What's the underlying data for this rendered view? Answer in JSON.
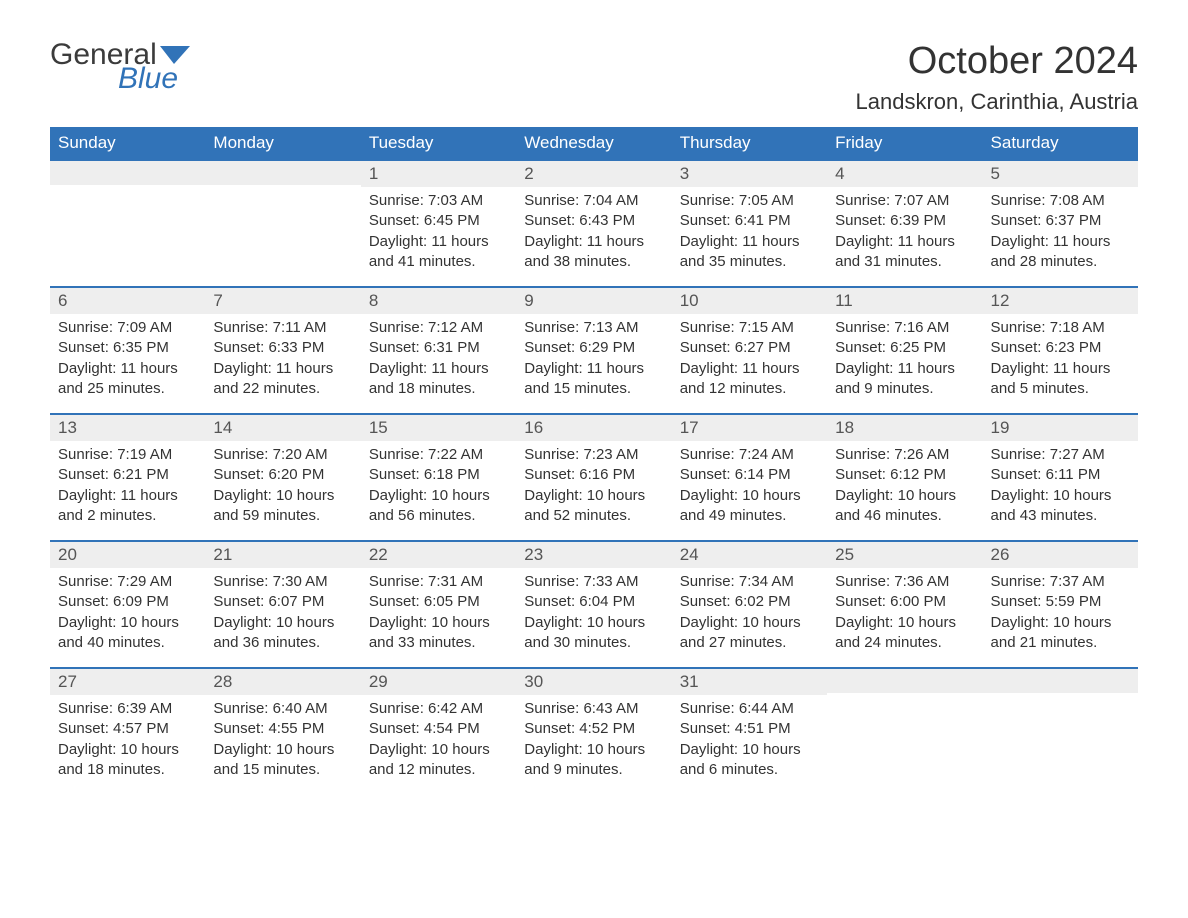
{
  "brand": {
    "word1": "General",
    "word2": "Blue",
    "word1_color": "#3b3b3b",
    "word2_color": "#3173b8",
    "flag_color": "#3173b8"
  },
  "title": "October 2024",
  "location": "Landskron, Carinthia, Austria",
  "colors": {
    "header_bg": "#3173b8",
    "header_text": "#ffffff",
    "daynum_bg": "#eeeeee",
    "daynum_text": "#555555",
    "week_border": "#3173b8",
    "body_text": "#333333",
    "background": "#ffffff"
  },
  "fonts": {
    "title_size_pt": 29,
    "location_size_pt": 17,
    "weekday_size_pt": 13,
    "daynum_size_pt": 13,
    "body_size_pt": 11
  },
  "weekdays": [
    "Sunday",
    "Monday",
    "Tuesday",
    "Wednesday",
    "Thursday",
    "Friday",
    "Saturday"
  ],
  "labels": {
    "sunrise": "Sunrise:",
    "sunset": "Sunset:",
    "daylight": "Daylight:"
  },
  "weeks": [
    [
      {
        "n": "",
        "empty": true
      },
      {
        "n": "",
        "empty": true
      },
      {
        "n": "1",
        "sunrise": "7:03 AM",
        "sunset": "6:45 PM",
        "daylight": "11 hours and 41 minutes."
      },
      {
        "n": "2",
        "sunrise": "7:04 AM",
        "sunset": "6:43 PM",
        "daylight": "11 hours and 38 minutes."
      },
      {
        "n": "3",
        "sunrise": "7:05 AM",
        "sunset": "6:41 PM",
        "daylight": "11 hours and 35 minutes."
      },
      {
        "n": "4",
        "sunrise": "7:07 AM",
        "sunset": "6:39 PM",
        "daylight": "11 hours and 31 minutes."
      },
      {
        "n": "5",
        "sunrise": "7:08 AM",
        "sunset": "6:37 PM",
        "daylight": "11 hours and 28 minutes."
      }
    ],
    [
      {
        "n": "6",
        "sunrise": "7:09 AM",
        "sunset": "6:35 PM",
        "daylight": "11 hours and 25 minutes."
      },
      {
        "n": "7",
        "sunrise": "7:11 AM",
        "sunset": "6:33 PM",
        "daylight": "11 hours and 22 minutes."
      },
      {
        "n": "8",
        "sunrise": "7:12 AM",
        "sunset": "6:31 PM",
        "daylight": "11 hours and 18 minutes."
      },
      {
        "n": "9",
        "sunrise": "7:13 AM",
        "sunset": "6:29 PM",
        "daylight": "11 hours and 15 minutes."
      },
      {
        "n": "10",
        "sunrise": "7:15 AM",
        "sunset": "6:27 PM",
        "daylight": "11 hours and 12 minutes."
      },
      {
        "n": "11",
        "sunrise": "7:16 AM",
        "sunset": "6:25 PM",
        "daylight": "11 hours and 9 minutes."
      },
      {
        "n": "12",
        "sunrise": "7:18 AM",
        "sunset": "6:23 PM",
        "daylight": "11 hours and 5 minutes."
      }
    ],
    [
      {
        "n": "13",
        "sunrise": "7:19 AM",
        "sunset": "6:21 PM",
        "daylight": "11 hours and 2 minutes."
      },
      {
        "n": "14",
        "sunrise": "7:20 AM",
        "sunset": "6:20 PM",
        "daylight": "10 hours and 59 minutes."
      },
      {
        "n": "15",
        "sunrise": "7:22 AM",
        "sunset": "6:18 PM",
        "daylight": "10 hours and 56 minutes."
      },
      {
        "n": "16",
        "sunrise": "7:23 AM",
        "sunset": "6:16 PM",
        "daylight": "10 hours and 52 minutes."
      },
      {
        "n": "17",
        "sunrise": "7:24 AM",
        "sunset": "6:14 PM",
        "daylight": "10 hours and 49 minutes."
      },
      {
        "n": "18",
        "sunrise": "7:26 AM",
        "sunset": "6:12 PM",
        "daylight": "10 hours and 46 minutes."
      },
      {
        "n": "19",
        "sunrise": "7:27 AM",
        "sunset": "6:11 PM",
        "daylight": "10 hours and 43 minutes."
      }
    ],
    [
      {
        "n": "20",
        "sunrise": "7:29 AM",
        "sunset": "6:09 PM",
        "daylight": "10 hours and 40 minutes."
      },
      {
        "n": "21",
        "sunrise": "7:30 AM",
        "sunset": "6:07 PM",
        "daylight": "10 hours and 36 minutes."
      },
      {
        "n": "22",
        "sunrise": "7:31 AM",
        "sunset": "6:05 PM",
        "daylight": "10 hours and 33 minutes."
      },
      {
        "n": "23",
        "sunrise": "7:33 AM",
        "sunset": "6:04 PM",
        "daylight": "10 hours and 30 minutes."
      },
      {
        "n": "24",
        "sunrise": "7:34 AM",
        "sunset": "6:02 PM",
        "daylight": "10 hours and 27 minutes."
      },
      {
        "n": "25",
        "sunrise": "7:36 AM",
        "sunset": "6:00 PM",
        "daylight": "10 hours and 24 minutes."
      },
      {
        "n": "26",
        "sunrise": "7:37 AM",
        "sunset": "5:59 PM",
        "daylight": "10 hours and 21 minutes."
      }
    ],
    [
      {
        "n": "27",
        "sunrise": "6:39 AM",
        "sunset": "4:57 PM",
        "daylight": "10 hours and 18 minutes."
      },
      {
        "n": "28",
        "sunrise": "6:40 AM",
        "sunset": "4:55 PM",
        "daylight": "10 hours and 15 minutes."
      },
      {
        "n": "29",
        "sunrise": "6:42 AM",
        "sunset": "4:54 PM",
        "daylight": "10 hours and 12 minutes."
      },
      {
        "n": "30",
        "sunrise": "6:43 AM",
        "sunset": "4:52 PM",
        "daylight": "10 hours and 9 minutes."
      },
      {
        "n": "31",
        "sunrise": "6:44 AM",
        "sunset": "4:51 PM",
        "daylight": "10 hours and 6 minutes."
      },
      {
        "n": "",
        "empty": true
      },
      {
        "n": "",
        "empty": true
      }
    ]
  ]
}
